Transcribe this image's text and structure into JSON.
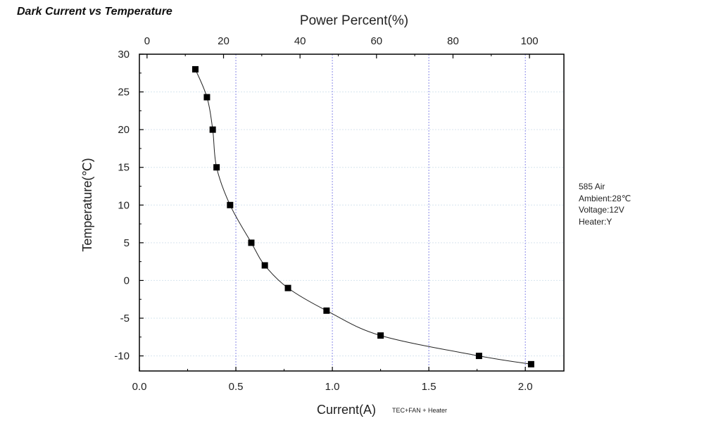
{
  "page": {
    "title": "Dark Current vs Temperature"
  },
  "chart_data": {
    "type": "scatter",
    "xlabel": "Current(A)",
    "xlabel_sub": "TEC+FAN + Heater",
    "ylabel": "Temperature(℃)",
    "x2label": "Power Percent(%)",
    "xlim": [
      0.0,
      2.2
    ],
    "ylim": [
      -12,
      30
    ],
    "x2lim": [
      -2,
      109
    ],
    "xticks": [
      "0.0",
      "0.5",
      "1.0",
      "1.5",
      "2.0"
    ],
    "xtick_values": [
      0.0,
      0.5,
      1.0,
      1.5,
      2.0
    ],
    "yticks": [
      "30",
      "25",
      "20",
      "15",
      "10",
      "5",
      "0",
      "-5",
      "-10"
    ],
    "ytick_values": [
      30,
      25,
      20,
      15,
      10,
      5,
      0,
      -5,
      -10
    ],
    "x2ticks": [
      "0",
      "20",
      "40",
      "60",
      "80",
      "100"
    ],
    "x2tick_values": [
      0,
      20,
      40,
      60,
      80,
      100
    ],
    "grid": true,
    "marker": "square",
    "line": "smooth",
    "x": [
      0.29,
      0.35,
      0.38,
      0.4,
      0.47,
      0.58,
      0.65,
      0.77,
      0.97,
      1.25,
      1.76,
      2.03
    ],
    "y": [
      28,
      24.3,
      20,
      15,
      10,
      5,
      2,
      -1,
      -4,
      -7.3,
      -10,
      -11.1
    ],
    "annotations": [
      "585 Air",
      "Ambient:28℃",
      "Voltage:12V",
      "Heater:Y"
    ]
  }
}
